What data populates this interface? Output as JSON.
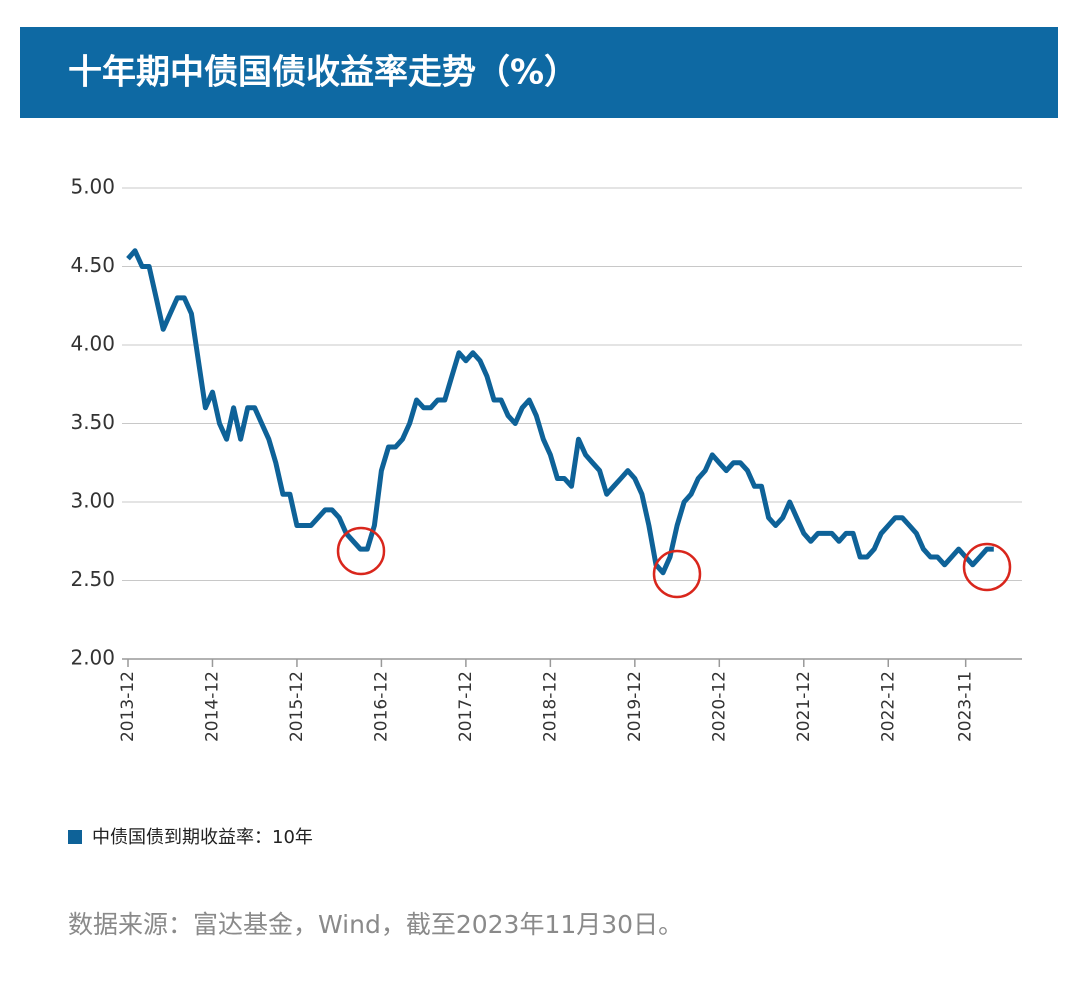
{
  "chart_data": {
    "type": "line",
    "title": "十年期中债国债收益率走势（%）",
    "note": "数据来源：富达基金，Wind，截至2023年11月30日。",
    "x": [
      "2013-12",
      "2014-01",
      "2014-02",
      "2014-03",
      "2014-04",
      "2014-05",
      "2014-06",
      "2014-07",
      "2014-08",
      "2014-09",
      "2014-10",
      "2014-11",
      "2014-12",
      "2015-01",
      "2015-02",
      "2015-03",
      "2015-04",
      "2015-05",
      "2015-06",
      "2015-07",
      "2015-08",
      "2015-09",
      "2015-10",
      "2015-11",
      "2015-12",
      "2016-01",
      "2016-02",
      "2016-03",
      "2016-04",
      "2016-05",
      "2016-06",
      "2016-07",
      "2016-08",
      "2016-09",
      "2016-10",
      "2016-11",
      "2016-12",
      "2017-01",
      "2017-02",
      "2017-03",
      "2017-04",
      "2017-05",
      "2017-06",
      "2017-07",
      "2017-08",
      "2017-09",
      "2017-10",
      "2017-11",
      "2017-12",
      "2018-01",
      "2018-02",
      "2018-03",
      "2018-04",
      "2018-05",
      "2018-06",
      "2018-07",
      "2018-08",
      "2018-09",
      "2018-10",
      "2018-11",
      "2018-12",
      "2019-01",
      "2019-02",
      "2019-03",
      "2019-04",
      "2019-05",
      "2019-06",
      "2019-07",
      "2019-08",
      "2019-09",
      "2019-10",
      "2019-11",
      "2019-12",
      "2020-01",
      "2020-02",
      "2020-03",
      "2020-04",
      "2020-05",
      "2020-06",
      "2020-07",
      "2020-08",
      "2020-09",
      "2020-10",
      "2020-11",
      "2020-12",
      "2021-01",
      "2021-02",
      "2021-03",
      "2021-04",
      "2021-05",
      "2021-06",
      "2021-07",
      "2021-08",
      "2021-09",
      "2021-10",
      "2021-11",
      "2021-12",
      "2022-01",
      "2022-02",
      "2022-03",
      "2022-04",
      "2022-05",
      "2022-06",
      "2022-07",
      "2022-08",
      "2022-09",
      "2022-10",
      "2022-11",
      "2022-12",
      "2023-01",
      "2023-02",
      "2023-03",
      "2023-04",
      "2023-05",
      "2023-06",
      "2023-07",
      "2023-08",
      "2023-09",
      "2023-10",
      "2023-11",
      "2023-12",
      "2024-01",
      "2024-02",
      "2024-03"
    ],
    "series": [
      {
        "name": "中债国债到期收益率：10年",
        "color": "#0e6298",
        "values": [
          4.55,
          4.6,
          4.5,
          4.5,
          4.3,
          4.1,
          4.2,
          4.3,
          4.3,
          4.2,
          3.9,
          3.6,
          3.7,
          3.5,
          3.4,
          3.6,
          3.4,
          3.6,
          3.6,
          3.5,
          3.4,
          3.25,
          3.05,
          3.05,
          2.85,
          2.85,
          2.85,
          2.9,
          2.95,
          2.95,
          2.9,
          2.8,
          2.75,
          2.7,
          2.7,
          2.85,
          3.2,
          3.35,
          3.35,
          3.4,
          3.5,
          3.65,
          3.6,
          3.6,
          3.65,
          3.65,
          3.8,
          3.95,
          3.9,
          3.95,
          3.9,
          3.8,
          3.65,
          3.65,
          3.55,
          3.5,
          3.6,
          3.65,
          3.55,
          3.4,
          3.3,
          3.15,
          3.15,
          3.1,
          3.4,
          3.3,
          3.25,
          3.2,
          3.05,
          3.1,
          3.15,
          3.2,
          3.15,
          3.05,
          2.85,
          2.6,
          2.55,
          2.65,
          2.85,
          3.0,
          3.05,
          3.15,
          3.2,
          3.3,
          3.25,
          3.2,
          3.25,
          3.25,
          3.2,
          3.1,
          3.1,
          2.9,
          2.85,
          2.9,
          3.0,
          2.9,
          2.8,
          2.75,
          2.8,
          2.8,
          2.8,
          2.75,
          2.8,
          2.8,
          2.65,
          2.65,
          2.7,
          2.8,
          2.85,
          2.9,
          2.9,
          2.85,
          2.8,
          2.7,
          2.65,
          2.65,
          2.6,
          2.65,
          2.7,
          2.65,
          2.6,
          2.65,
          2.7,
          2.7
        ]
      }
    ],
    "xlim": [
      "2013-12",
      "2024-07"
    ],
    "xticks": [
      "2013-12",
      "2014-12",
      "2015-12",
      "2016-12",
      "2017-12",
      "2018-12",
      "2019-12",
      "2020-12",
      "2021-12",
      "2022-12",
      "2023-11"
    ],
    "ylim": [
      2,
      5
    ],
    "yticks": [
      {
        "value": 2,
        "label": "2.00"
      },
      {
        "value": 2.5,
        "label": "2.50"
      },
      {
        "value": 3,
        "label": "3.00"
      },
      {
        "value": 3.5,
        "label": "3.50"
      },
      {
        "value": 4,
        "label": "4.00"
      },
      {
        "value": 4.5,
        "label": "4.50"
      },
      {
        "value": 5,
        "label": "5.00"
      }
    ],
    "grid": true
  }
}
